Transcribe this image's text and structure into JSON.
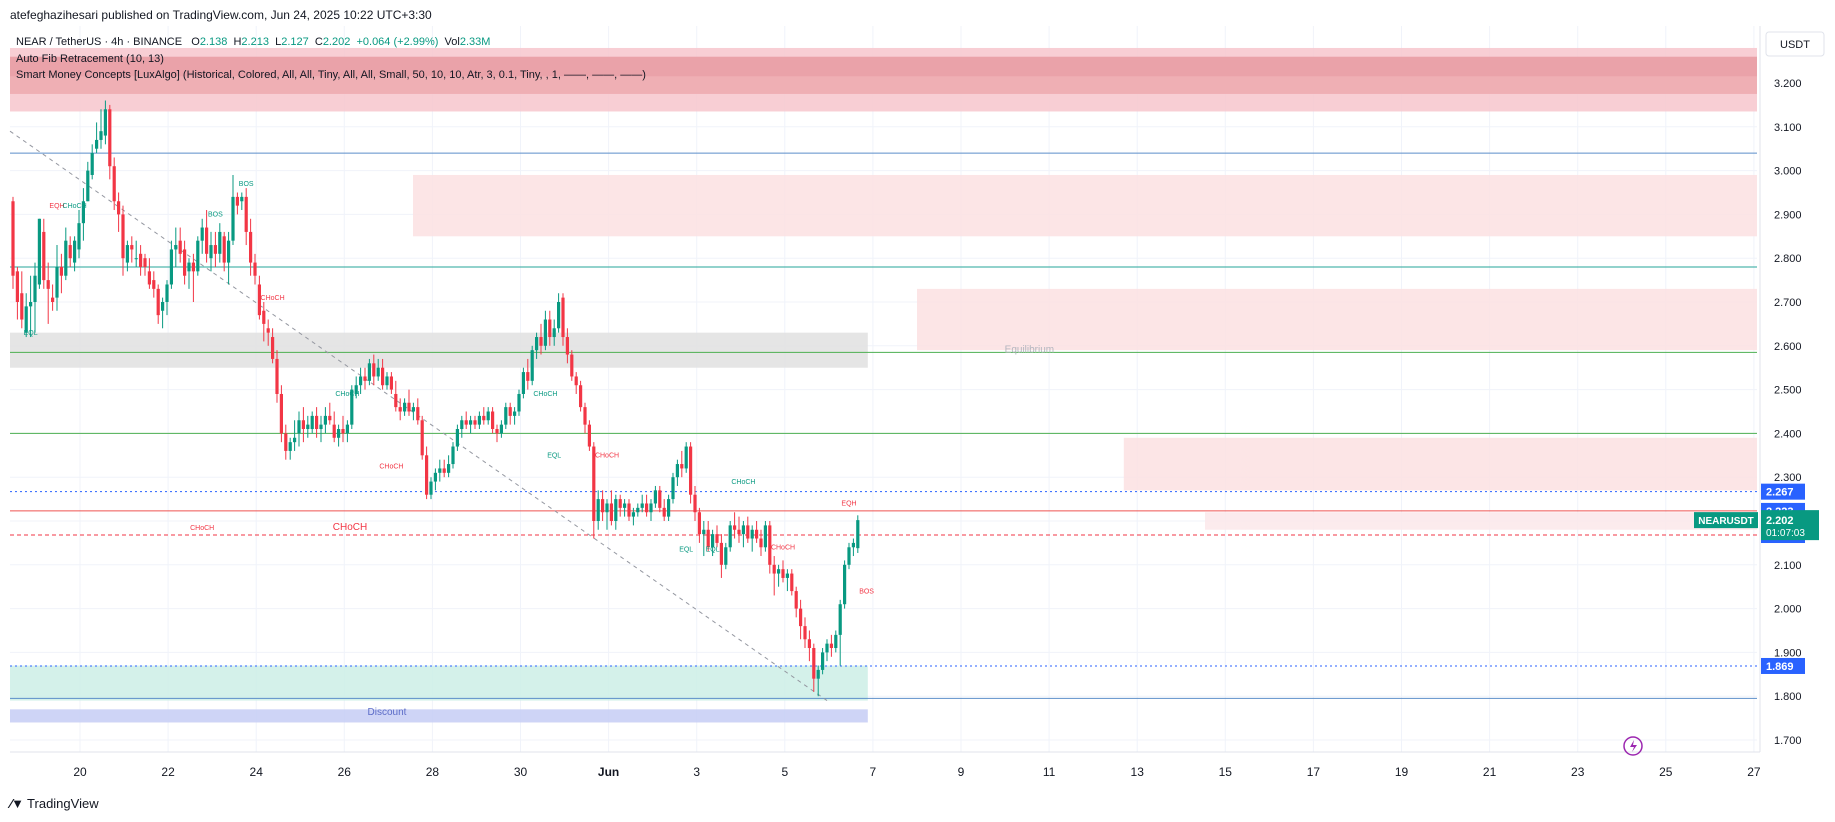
{
  "publisher": "atefeghazihesari published on TradingView.com, Jun 24, 2025 10:22 UTC+3:30",
  "legend": {
    "symbol": "NEAR / TetherUS · 4h · BINANCE",
    "o_label": "O",
    "o_value": "2.138",
    "h_label": "H",
    "h_value": "2.213",
    "l_label": "L",
    "l_value": "2.127",
    "c_label": "C",
    "c_value": "2.202",
    "change": "+0.064 (+2.99%)",
    "vol_label": "Vol",
    "vol_value": "2.33M",
    "indicator1": "Auto Fib Retracement (10, 13)",
    "indicator2": "Smart Money Concepts [LuxAlgo] (Historical, Colored, All, All, Tiny, All, All, Small, 50, 10, 10, Atr, 3, 0.1, Tiny, , 1, ——, ——, ——)"
  },
  "footer": {
    "brand": "TradingView"
  },
  "chart_data": {
    "type": "candlestick",
    "currency": "USDT",
    "x_ticks": [
      "20",
      "22",
      "24",
      "26",
      "28",
      "30",
      "Jun",
      "3",
      "5",
      "7",
      "9",
      "11",
      "13",
      "15",
      "17",
      "19",
      "21",
      "23",
      "25",
      "27"
    ],
    "y_ticks": [
      "3.200",
      "3.100",
      "3.000",
      "2.900",
      "2.800",
      "2.700",
      "2.600",
      "2.500",
      "2.400",
      "2.300",
      "2.200",
      "2.100",
      "2.000",
      "1.900",
      "1.800",
      "1.700"
    ],
    "price_badges": [
      {
        "value": "2.267",
        "color": "#2962ff"
      },
      {
        "value": "2.223",
        "color": "#2962ff"
      },
      {
        "value": "2.168",
        "color": "#2962ff"
      },
      {
        "value": "1.869",
        "color": "#2962ff"
      }
    ],
    "current": {
      "symbol": "NEARUSDT",
      "price": "2.202",
      "countdown": "01:07:03",
      "color": "#089981"
    },
    "candles": [
      [
        2.93,
        2.94,
        2.73,
        2.76
      ],
      [
        2.77,
        2.78,
        2.66,
        2.7
      ],
      [
        2.72,
        2.77,
        2.64,
        2.66
      ],
      [
        2.63,
        2.72,
        2.62,
        2.69
      ],
      [
        2.69,
        2.76,
        2.62,
        2.7
      ],
      [
        2.7,
        2.79,
        2.63,
        2.76
      ],
      [
        2.74,
        2.89,
        2.73,
        2.89
      ],
      [
        2.86,
        2.89,
        2.73,
        2.75
      ],
      [
        2.75,
        2.79,
        2.65,
        2.73
      ],
      [
        2.71,
        2.74,
        2.68,
        2.7
      ],
      [
        2.71,
        2.83,
        2.68,
        2.78
      ],
      [
        2.78,
        2.81,
        2.72,
        2.76
      ],
      [
        2.76,
        2.87,
        2.75,
        2.84
      ],
      [
        2.83,
        2.85,
        2.78,
        2.8
      ],
      [
        2.79,
        2.85,
        2.77,
        2.84
      ],
      [
        2.82,
        2.91,
        2.8,
        2.88
      ],
      [
        2.88,
        2.96,
        2.84,
        2.93
      ],
      [
        2.93,
        3.02,
        2.93,
        3.0
      ],
      [
        2.99,
        3.06,
        2.98,
        3.04
      ],
      [
        3.05,
        3.11,
        3.04,
        3.07
      ],
      [
        3.07,
        3.14,
        3.05,
        3.09
      ],
      [
        3.08,
        3.16,
        3.06,
        3.14
      ],
      [
        3.14,
        3.15,
        2.98,
        3.01
      ],
      [
        3.01,
        3.03,
        2.91,
        2.93
      ],
      [
        2.93,
        2.95,
        2.86,
        2.9
      ],
      [
        2.9,
        2.92,
        2.76,
        2.8
      ],
      [
        2.79,
        2.84,
        2.77,
        2.83
      ],
      [
        2.83,
        2.85,
        2.79,
        2.82
      ],
      [
        2.8,
        2.84,
        2.78,
        2.8
      ],
      [
        2.81,
        2.83,
        2.76,
        2.78
      ],
      [
        2.8,
        2.81,
        2.76,
        2.78
      ],
      [
        2.77,
        2.8,
        2.73,
        2.74
      ],
      [
        2.75,
        2.77,
        2.71,
        2.73
      ],
      [
        2.73,
        2.74,
        2.65,
        2.67
      ],
      [
        2.68,
        2.71,
        2.64,
        2.7
      ],
      [
        2.7,
        2.75,
        2.67,
        2.74
      ],
      [
        2.74,
        2.84,
        2.73,
        2.82
      ],
      [
        2.82,
        2.87,
        2.78,
        2.83
      ],
      [
        2.84,
        2.87,
        2.79,
        2.81
      ],
      [
        2.82,
        2.84,
        2.74,
        2.76
      ],
      [
        2.77,
        2.8,
        2.73,
        2.79
      ],
      [
        2.79,
        2.81,
        2.7,
        2.77
      ],
      [
        2.77,
        2.85,
        2.76,
        2.84
      ],
      [
        2.84,
        2.89,
        2.81,
        2.87
      ],
      [
        2.87,
        2.91,
        2.79,
        2.81
      ],
      [
        2.8,
        2.86,
        2.77,
        2.83
      ],
      [
        2.83,
        2.86,
        2.78,
        2.81
      ],
      [
        2.81,
        2.88,
        2.79,
        2.86
      ],
      [
        2.85,
        2.86,
        2.77,
        2.79
      ],
      [
        2.79,
        2.86,
        2.74,
        2.84
      ],
      [
        2.84,
        2.99,
        2.83,
        2.94
      ],
      [
        2.94,
        2.95,
        2.9,
        2.92
      ],
      [
        2.93,
        2.95,
        2.91,
        2.94
      ],
      [
        2.94,
        2.96,
        2.83,
        2.86
      ],
      [
        2.86,
        2.89,
        2.76,
        2.79
      ],
      [
        2.79,
        2.81,
        2.74,
        2.76
      ],
      [
        2.74,
        2.76,
        2.66,
        2.67
      ],
      [
        2.68,
        2.7,
        2.61,
        2.65
      ],
      [
        2.64,
        2.66,
        2.6,
        2.63
      ],
      [
        2.62,
        2.64,
        2.56,
        2.57
      ],
      [
        2.57,
        2.59,
        2.47,
        2.49
      ],
      [
        2.49,
        2.51,
        2.38,
        2.4
      ],
      [
        2.4,
        2.42,
        2.34,
        2.36
      ],
      [
        2.36,
        2.39,
        2.34,
        2.38
      ],
      [
        2.38,
        2.43,
        2.36,
        2.39
      ],
      [
        2.4,
        2.45,
        2.37,
        2.43
      ],
      [
        2.43,
        2.46,
        2.38,
        2.41
      ],
      [
        2.41,
        2.44,
        2.39,
        2.42
      ],
      [
        2.41,
        2.45,
        2.4,
        2.44
      ],
      [
        2.44,
        2.46,
        2.39,
        2.41
      ],
      [
        2.41,
        2.44,
        2.38,
        2.42
      ],
      [
        2.42,
        2.46,
        2.4,
        2.44
      ],
      [
        2.44,
        2.47,
        2.42,
        2.43
      ],
      [
        2.42,
        2.45,
        2.38,
        2.39
      ],
      [
        2.39,
        2.42,
        2.37,
        2.41
      ],
      [
        2.41,
        2.44,
        2.38,
        2.4
      ],
      [
        2.4,
        2.43,
        2.38,
        2.42
      ],
      [
        2.42,
        2.51,
        2.41,
        2.5
      ],
      [
        2.49,
        2.53,
        2.48,
        2.51
      ],
      [
        2.51,
        2.55,
        2.49,
        2.53
      ],
      [
        2.53,
        2.55,
        2.5,
        2.52
      ],
      [
        2.52,
        2.57,
        2.51,
        2.56
      ],
      [
        2.56,
        2.58,
        2.51,
        2.53
      ],
      [
        2.53,
        2.57,
        2.52,
        2.55
      ],
      [
        2.55,
        2.57,
        2.5,
        2.51
      ],
      [
        2.51,
        2.54,
        2.5,
        2.53
      ],
      [
        2.53,
        2.54,
        2.49,
        2.5
      ],
      [
        2.49,
        2.52,
        2.45,
        2.46
      ],
      [
        2.46,
        2.48,
        2.43,
        2.45
      ],
      [
        2.45,
        2.48,
        2.44,
        2.47
      ],
      [
        2.47,
        2.5,
        2.44,
        2.45
      ],
      [
        2.45,
        2.47,
        2.43,
        2.46
      ],
      [
        2.46,
        2.48,
        2.42,
        2.43
      ],
      [
        2.43,
        2.44,
        2.34,
        2.35
      ],
      [
        2.35,
        2.37,
        2.25,
        2.26
      ],
      [
        2.26,
        2.3,
        2.25,
        2.29
      ],
      [
        2.29,
        2.32,
        2.27,
        2.31
      ],
      [
        2.31,
        2.34,
        2.29,
        2.32
      ],
      [
        2.32,
        2.34,
        2.3,
        2.31
      ],
      [
        2.31,
        2.35,
        2.3,
        2.33
      ],
      [
        2.33,
        2.38,
        2.32,
        2.37
      ],
      [
        2.37,
        2.42,
        2.36,
        2.41
      ],
      [
        2.41,
        2.44,
        2.39,
        2.43
      ],
      [
        2.43,
        2.45,
        2.41,
        2.42
      ],
      [
        2.42,
        2.44,
        2.4,
        2.43
      ],
      [
        2.43,
        2.44,
        2.41,
        2.42
      ],
      [
        2.42,
        2.45,
        2.41,
        2.44
      ],
      [
        2.44,
        2.46,
        2.42,
        2.43
      ],
      [
        2.43,
        2.46,
        2.42,
        2.45
      ],
      [
        2.45,
        2.46,
        2.4,
        2.41
      ],
      [
        2.41,
        2.42,
        2.38,
        2.4
      ],
      [
        2.4,
        2.43,
        2.39,
        2.42
      ],
      [
        2.42,
        2.47,
        2.41,
        2.46
      ],
      [
        2.46,
        2.47,
        2.42,
        2.44
      ],
      [
        2.44,
        2.46,
        2.42,
        2.45
      ],
      [
        2.45,
        2.5,
        2.44,
        2.49
      ],
      [
        2.49,
        2.55,
        2.48,
        2.54
      ],
      [
        2.54,
        2.57,
        2.5,
        2.52
      ],
      [
        2.52,
        2.6,
        2.51,
        2.59
      ],
      [
        2.59,
        2.63,
        2.57,
        2.62
      ],
      [
        2.62,
        2.65,
        2.58,
        2.6
      ],
      [
        2.6,
        2.68,
        2.59,
        2.66
      ],
      [
        2.66,
        2.68,
        2.6,
        2.62
      ],
      [
        2.62,
        2.66,
        2.6,
        2.64
      ],
      [
        2.64,
        2.72,
        2.63,
        2.7
      ],
      [
        2.71,
        2.72,
        2.6,
        2.62
      ],
      [
        2.62,
        2.64,
        2.56,
        2.58
      ],
      [
        2.58,
        2.59,
        2.52,
        2.53
      ],
      [
        2.53,
        2.54,
        2.49,
        2.51
      ],
      [
        2.51,
        2.52,
        2.45,
        2.46
      ],
      [
        2.46,
        2.47,
        2.4,
        2.42
      ],
      [
        2.42,
        2.43,
        2.36,
        2.37
      ],
      [
        2.37,
        2.38,
        2.16,
        2.2
      ],
      [
        2.2,
        2.27,
        2.18,
        2.25
      ],
      [
        2.25,
        2.27,
        2.2,
        2.22
      ],
      [
        2.22,
        2.25,
        2.18,
        2.24
      ],
      [
        2.24,
        2.27,
        2.19,
        2.2
      ],
      [
        2.2,
        2.26,
        2.18,
        2.25
      ],
      [
        2.25,
        2.26,
        2.21,
        2.23
      ],
      [
        2.23,
        2.25,
        2.21,
        2.24
      ],
      [
        2.24,
        2.25,
        2.2,
        2.21
      ],
      [
        2.21,
        2.23,
        2.19,
        2.22
      ],
      [
        2.22,
        2.24,
        2.21,
        2.23
      ],
      [
        2.23,
        2.26,
        2.22,
        2.24
      ],
      [
        2.24,
        2.26,
        2.21,
        2.22
      ],
      [
        2.22,
        2.25,
        2.2,
        2.24
      ],
      [
        2.24,
        2.28,
        2.23,
        2.27
      ],
      [
        2.27,
        2.28,
        2.22,
        2.23
      ],
      [
        2.23,
        2.25,
        2.2,
        2.21
      ],
      [
        2.21,
        2.26,
        2.2,
        2.25
      ],
      [
        2.25,
        2.31,
        2.24,
        2.3
      ],
      [
        2.3,
        2.34,
        2.28,
        2.33
      ],
      [
        2.33,
        2.36,
        2.3,
        2.32
      ],
      [
        2.32,
        2.38,
        2.31,
        2.37
      ],
      [
        2.37,
        2.38,
        2.24,
        2.26
      ],
      [
        2.26,
        2.28,
        2.2,
        2.22
      ],
      [
        2.22,
        2.23,
        2.15,
        2.17
      ],
      [
        2.17,
        2.2,
        2.12,
        2.18
      ],
      [
        2.18,
        2.2,
        2.13,
        2.14
      ],
      [
        2.14,
        2.18,
        2.12,
        2.17
      ],
      [
        2.17,
        2.19,
        2.14,
        2.15
      ],
      [
        2.15,
        2.17,
        2.07,
        2.1
      ],
      [
        2.1,
        2.15,
        2.09,
        2.14
      ],
      [
        2.14,
        2.2,
        2.13,
        2.19
      ],
      [
        2.19,
        2.22,
        2.16,
        2.18
      ],
      [
        2.18,
        2.21,
        2.15,
        2.17
      ],
      [
        2.17,
        2.2,
        2.14,
        2.19
      ],
      [
        2.19,
        2.21,
        2.15,
        2.16
      ],
      [
        2.16,
        2.19,
        2.13,
        2.18
      ],
      [
        2.18,
        2.2,
        2.15,
        2.16
      ],
      [
        2.16,
        2.18,
        2.12,
        2.14
      ],
      [
        2.14,
        2.2,
        2.13,
        2.19
      ],
      [
        2.19,
        2.2,
        2.08,
        2.1
      ],
      [
        2.1,
        2.12,
        2.03,
        2.08
      ],
      [
        2.08,
        2.1,
        2.05,
        2.09
      ],
      [
        2.09,
        2.11,
        2.06,
        2.07
      ],
      [
        2.07,
        2.09,
        2.04,
        2.08
      ],
      [
        2.08,
        2.09,
        2.03,
        2.04
      ],
      [
        2.04,
        2.05,
        1.98,
        2.0
      ],
      [
        2.0,
        2.02,
        1.93,
        1.96
      ],
      [
        1.96,
        1.98,
        1.91,
        1.93
      ],
      [
        1.93,
        1.95,
        1.88,
        1.91
      ],
      [
        1.91,
        1.92,
        1.81,
        1.84
      ],
      [
        1.84,
        1.87,
        1.8,
        1.86
      ],
      [
        1.86,
        1.91,
        1.85,
        1.9
      ],
      [
        1.9,
        1.93,
        1.88,
        1.92
      ],
      [
        1.92,
        1.94,
        1.89,
        1.91
      ],
      [
        1.91,
        1.95,
        1.9,
        1.94
      ],
      [
        1.94,
        2.02,
        1.87,
        2.01
      ],
      [
        2.01,
        2.11,
        2.0,
        2.1
      ],
      [
        2.1,
        2.15,
        2.09,
        2.14
      ],
      [
        2.14,
        2.16,
        2.12,
        2.15
      ],
      [
        2.138,
        2.213,
        2.127,
        2.202
      ]
    ],
    "zones": [
      {
        "top": 3.28,
        "bottom": 3.135,
        "color": "#f7c6cc"
      },
      {
        "top": 3.26,
        "bottom": 3.215,
        "color": "#e89aa1"
      },
      {
        "top": 3.215,
        "bottom": 3.175,
        "color": "#eda9ae"
      },
      {
        "top": 2.99,
        "bottom": 2.85,
        "color": "#fce0e2"
      },
      {
        "top": 2.73,
        "bottom": 2.59,
        "color": "#fce0e2"
      },
      {
        "top": 2.39,
        "bottom": 2.27,
        "color": "#fce0e2"
      },
      {
        "top": 2.22,
        "bottom": 2.18,
        "color": "#fce8ea"
      },
      {
        "top": 2.63,
        "bottom": 2.55,
        "color": "#e0e0e0"
      },
      {
        "top": 1.87,
        "bottom": 1.79,
        "color": "#cdeee6"
      },
      {
        "top": 1.77,
        "bottom": 1.74,
        "color": "#c5cdf5"
      }
    ],
    "lines": [
      {
        "y": 3.04,
        "color": "#5b8ec9",
        "style": "solid"
      },
      {
        "y": 2.78,
        "color": "#26a69a",
        "style": "solid"
      },
      {
        "y": 2.585,
        "color": "#4caf50",
        "style": "solid"
      },
      {
        "y": 2.4,
        "color": "#4caf50",
        "style": "solid"
      },
      {
        "y": 2.267,
        "color": "#2962ff",
        "style": "dotted"
      },
      {
        "y": 2.223,
        "color": "#ef5350",
        "style": "solid"
      },
      {
        "y": 2.168,
        "color": "#f23645",
        "style": "dashed"
      },
      {
        "y": 1.869,
        "color": "#2962ff",
        "style": "dotted"
      },
      {
        "y": 1.795,
        "color": "#5b8ec9",
        "style": "solid"
      }
    ],
    "labels": [
      {
        "text": "EQH",
        "idx": 10,
        "y": 2.915,
        "color": "#f23645"
      },
      {
        "text": "CHoCH",
        "idx": 14,
        "y": 2.915,
        "color": "#089981"
      },
      {
        "text": "EQL",
        "idx": 4,
        "y": 2.625,
        "color": "#089981"
      },
      {
        "text": "BOS",
        "idx": 46,
        "y": 2.895,
        "color": "#089981"
      },
      {
        "text": "BOS",
        "idx": 53,
        "y": 2.965,
        "color": "#089981"
      },
      {
        "text": "CHoCH",
        "idx": 59,
        "y": 2.705,
        "color": "#f23645"
      },
      {
        "text": "CHoCH",
        "idx": 76,
        "y": 2.485,
        "color": "#089981"
      },
      {
        "text": "CHoCH",
        "idx": 86,
        "y": 2.32,
        "color": "#f23645"
      },
      {
        "text": "CHoCH",
        "idx": 121,
        "y": 2.485,
        "color": "#089981"
      },
      {
        "text": "EQL",
        "idx": 123,
        "y": 2.345,
        "color": "#089981"
      },
      {
        "text": "CHoCH",
        "idx": 135,
        "y": 2.345,
        "color": "#f23645"
      },
      {
        "text": "EQL",
        "idx": 153,
        "y": 2.13,
        "color": "#089981"
      },
      {
        "text": "EQL",
        "idx": 159,
        "y": 2.13,
        "color": "#089981"
      },
      {
        "text": "CHoCH",
        "idx": 166,
        "y": 2.285,
        "color": "#089981"
      },
      {
        "text": "CHoCH",
        "idx": 175,
        "y": 2.135,
        "color": "#f23645"
      },
      {
        "text": "EQH",
        "idx": 190,
        "y": 2.235,
        "color": "#f23645"
      },
      {
        "text": "BOS",
        "idx": 194,
        "y": 2.035,
        "color": "#f23645"
      },
      {
        "text": "CHoCH",
        "idx": 43,
        "y": 2.18,
        "color": "#f23645"
      },
      {
        "text": "Discount",
        "idx": 85,
        "y": 1.757,
        "color": "#5b6bc7"
      },
      {
        "text": "Equilibrium",
        "idx": 231,
        "y": 2.585,
        "color": "#b2b5be"
      }
    ]
  }
}
